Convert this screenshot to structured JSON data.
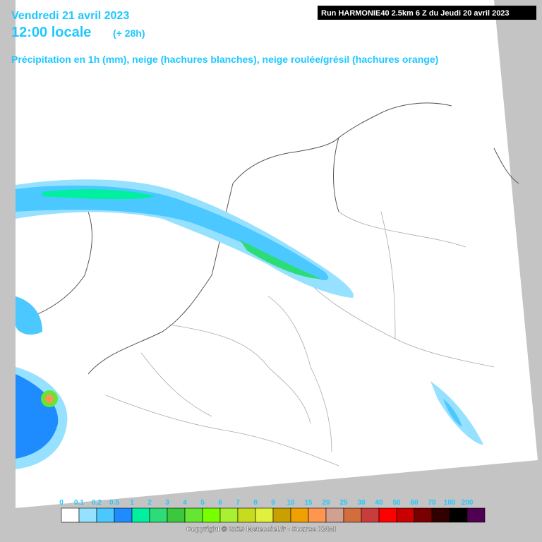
{
  "header": {
    "date": "Vendredi 21 avril 2023",
    "time": "12:00 locale",
    "lead": "(+ 28h)",
    "subtitle": "Précipitation en 1h (mm), neige (hachures blanches), neige roulée/grésil (hachures orange)",
    "run": "Run HARMONIE40 2.5km 6 Z du Jeudi 20 avril 2023"
  },
  "legend": {
    "items": [
      {
        "label": "0",
        "color": "#ffffff"
      },
      {
        "label": "0.1",
        "color": "#96e1ff"
      },
      {
        "label": "0.2",
        "color": "#4bc8ff"
      },
      {
        "label": "0.5",
        "color": "#1e8cff"
      },
      {
        "label": "1",
        "color": "#00f0a0"
      },
      {
        "label": "2",
        "color": "#2ddc78"
      },
      {
        "label": "3",
        "color": "#3cc83c"
      },
      {
        "label": "4",
        "color": "#64e632"
      },
      {
        "label": "5",
        "color": "#78ff00"
      },
      {
        "label": "6",
        "color": "#aaf032"
      },
      {
        "label": "7",
        "color": "#c8dc1e"
      },
      {
        "label": "8",
        "color": "#e1f03c"
      },
      {
        "label": "9",
        "color": "#c8a000"
      },
      {
        "label": "10",
        "color": "#f0a000"
      },
      {
        "label": "15",
        "color": "#ff9650"
      },
      {
        "label": "20",
        "color": "#d2a090"
      },
      {
        "label": "25",
        "color": "#d26e3c"
      },
      {
        "label": "30",
        "color": "#c83c3c"
      },
      {
        "label": "40",
        "color": "#ff0000"
      },
      {
        "label": "50",
        "color": "#c80000"
      },
      {
        "label": "60",
        "color": "#780000"
      },
      {
        "label": "70",
        "color": "#320000"
      },
      {
        "label": "100",
        "color": "#000000"
      },
      {
        "label": "200",
        "color": "#500050"
      }
    ]
  },
  "footer": {
    "copyright": "Copyright © 2019 Meteociel.fr - Source KNMI"
  }
}
